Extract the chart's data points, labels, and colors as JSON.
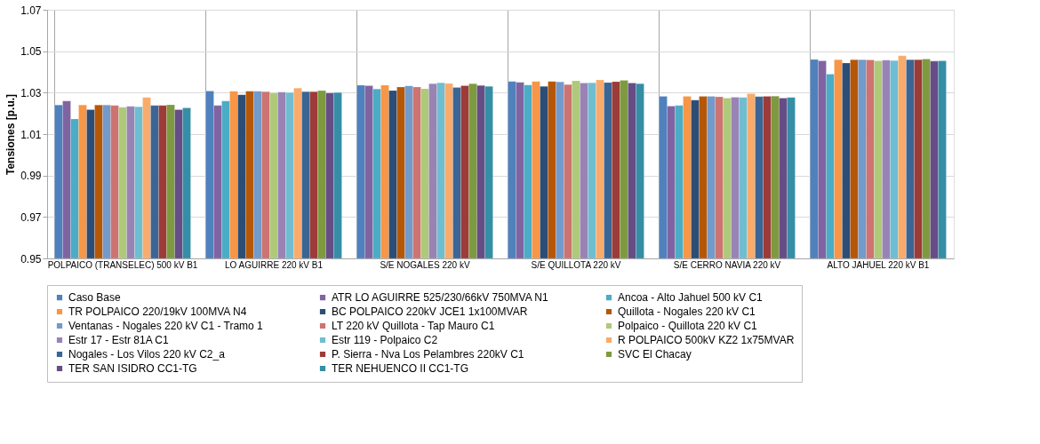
{
  "chart_data": {
    "type": "bar",
    "ylabel": "Tensiones [p.u.]",
    "categories": [
      "POLPAICO (TRANSELEC) 500 kV B1",
      "LO AGUIRRE 220 kV B1",
      "S/E NOGALES 220 kV",
      "S/E QUILLOTA 220 kV",
      "S/E CERRO NAVIA 220 kV",
      "ALTO JAHUEL 220 kV B1"
    ],
    "ylim": [
      0.95,
      1.07
    ],
    "yticks": [
      0.95,
      0.97,
      0.99,
      1.01,
      1.03,
      1.05,
      1.07
    ],
    "grid": true,
    "legend": "bottom",
    "series": [
      {
        "name": "Caso Base",
        "color": "#4f81bd",
        "values": [
          1.024,
          1.0308,
          1.0336,
          1.0354,
          1.0282,
          1.046
        ]
      },
      {
        "name": "ATR LO AGUIRRE 525/230/66kV 750MVA N1",
        "color": "#8064a2",
        "values": [
          1.026,
          1.0238,
          1.0334,
          1.035,
          1.0235,
          1.0454
        ]
      },
      {
        "name": "Ancoa - Alto Jahuel 500 kV C1",
        "color": "#4bacc6",
        "values": [
          1.0173,
          1.026,
          1.0318,
          1.0337,
          1.0238,
          1.0389
        ]
      },
      {
        "name": "TR POLPAICO 220/19kV 100MVA N4",
        "color": "#f79646",
        "values": [
          1.024,
          1.0307,
          1.0336,
          1.0354,
          1.0282,
          1.0459
        ]
      },
      {
        "name": "BC POLPAICO 220kV JCE1 1x100MVAR",
        "color": "#2c4d75",
        "values": [
          1.0218,
          1.029,
          1.031,
          1.033,
          1.0264,
          1.0443
        ]
      },
      {
        "name": "Quillota - Nogales 220 kV C1",
        "color": "#b65708",
        "values": [
          1.024,
          1.0307,
          1.0327,
          1.0354,
          1.0282,
          1.0459
        ]
      },
      {
        "name": "Ventanas - Nogales 220 kV C1 - Tramo 1",
        "color": "#729aca",
        "values": [
          1.024,
          1.0307,
          1.0333,
          1.0352,
          1.0282,
          1.0459
        ]
      },
      {
        "name": "LT 220 kV Quillota - Tap Mauro C1",
        "color": "#cd7371",
        "values": [
          1.0238,
          1.0305,
          1.0327,
          1.0339,
          1.028,
          1.0458
        ]
      },
      {
        "name": "Polpaico - Quillota 220 kV C1",
        "color": "#afc97a",
        "values": [
          1.023,
          1.0298,
          1.0319,
          1.0357,
          1.0274,
          1.0454
        ]
      },
      {
        "name": "Estr 17 - Estr 81A C1",
        "color": "#9983b5",
        "values": [
          1.0234,
          1.0303,
          1.0343,
          1.0346,
          1.0278,
          1.0457
        ]
      },
      {
        "name": "Estr 119 - Polpaico C2",
        "color": "#6fbdd1",
        "values": [
          1.0232,
          1.03,
          1.0348,
          1.0347,
          1.0277,
          1.0455
        ]
      },
      {
        "name": "R POLPAICO 500kV KZ2 1x75MVAR",
        "color": "#f9ab6b",
        "values": [
          1.0277,
          1.0322,
          1.0344,
          1.0361,
          1.0295,
          1.0478
        ]
      },
      {
        "name": "Nogales - Los Vilos 220 kV C2_a",
        "color": "#3a6595",
        "values": [
          1.0238,
          1.0305,
          1.0325,
          1.0349,
          1.0281,
          1.0459
        ]
      },
      {
        "name": "P. Sierra - Nva Los Pelambres 220kV C1",
        "color": "#9c3b38",
        "values": [
          1.0238,
          1.0305,
          1.0334,
          1.0353,
          1.0282,
          1.0459
        ]
      },
      {
        "name": "SVC El Chacay",
        "color": "#7e9a3f",
        "values": [
          1.0241,
          1.031,
          1.0343,
          1.0359,
          1.0283,
          1.0462
        ]
      },
      {
        "name": "TER SAN ISIDRO CC1-TG",
        "color": "#664d85",
        "values": [
          1.0218,
          1.0298,
          1.0335,
          1.0346,
          1.0274,
          1.0452
        ]
      },
      {
        "name": "TER NEHUENCO II CC1-TG",
        "color": "#358ea6",
        "values": [
          1.0226,
          1.03,
          1.033,
          1.0343,
          1.0277,
          1.0454
        ]
      }
    ]
  }
}
